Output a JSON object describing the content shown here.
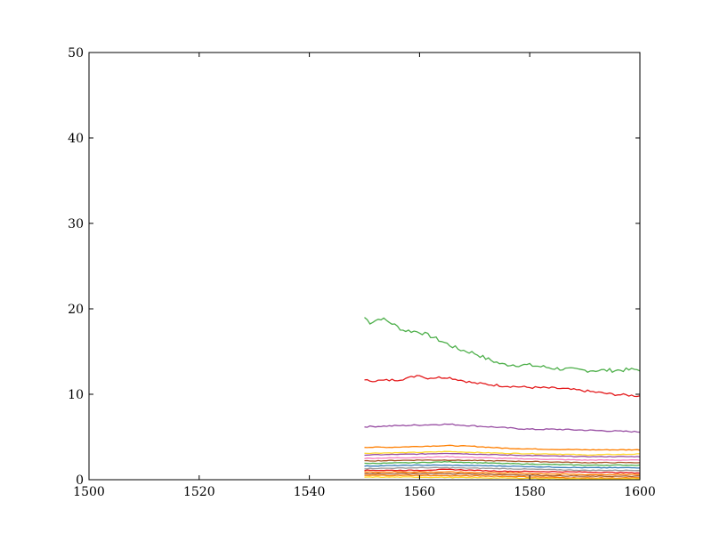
{
  "chart_data": {
    "type": "line",
    "title": "",
    "xlabel": "",
    "ylabel": "",
    "xlim": [
      1500,
      1600
    ],
    "ylim": [
      0,
      50
    ],
    "x_ticks": [
      "1500",
      "1520",
      "1540",
      "1560",
      "1580",
      "1600"
    ],
    "y_ticks": [
      "0",
      "10",
      "20",
      "30",
      "40",
      "50"
    ],
    "grid": false,
    "legend": "none",
    "x_range": [
      1550,
      1600
    ],
    "series": [
      {
        "color": "#4daf4a",
        "keyframes": [
          [
            1550,
            19.0
          ],
          [
            1551,
            18.4
          ],
          [
            1553,
            18.9
          ],
          [
            1555,
            18.3
          ],
          [
            1557,
            17.5
          ],
          [
            1560,
            17.3
          ],
          [
            1562,
            16.8
          ],
          [
            1565,
            15.9
          ],
          [
            1567,
            15.3
          ],
          [
            1570,
            14.8
          ],
          [
            1572,
            14.2
          ],
          [
            1575,
            13.5
          ],
          [
            1580,
            13.4
          ],
          [
            1585,
            13.0
          ],
          [
            1590,
            12.8
          ],
          [
            1595,
            12.8
          ],
          [
            1600,
            12.9
          ]
        ]
      },
      {
        "color": "#e41a1c",
        "keyframes": [
          [
            1550,
            11.6
          ],
          [
            1553,
            11.6
          ],
          [
            1556,
            11.7
          ],
          [
            1558,
            11.9
          ],
          [
            1560,
            12.3
          ],
          [
            1561,
            11.9
          ],
          [
            1565,
            12.0
          ],
          [
            1570,
            11.3
          ],
          [
            1575,
            11.0
          ],
          [
            1580,
            10.8
          ],
          [
            1585,
            10.7
          ],
          [
            1590,
            10.4
          ],
          [
            1595,
            10.0
          ],
          [
            1600,
            9.8
          ]
        ]
      },
      {
        "color": "#984ea3",
        "keyframes": [
          [
            1550,
            6.2
          ],
          [
            1555,
            6.3
          ],
          [
            1560,
            6.4
          ],
          [
            1565,
            6.5
          ],
          [
            1570,
            6.3
          ],
          [
            1575,
            6.1
          ],
          [
            1580,
            5.9
          ],
          [
            1585,
            5.9
          ],
          [
            1590,
            5.8
          ],
          [
            1595,
            5.7
          ],
          [
            1600,
            5.6
          ]
        ]
      },
      {
        "color": "#ff7f00",
        "keyframes": [
          [
            1550,
            3.8
          ],
          [
            1555,
            3.8
          ],
          [
            1560,
            3.9
          ],
          [
            1565,
            4.0
          ],
          [
            1570,
            3.9
          ],
          [
            1575,
            3.7
          ],
          [
            1580,
            3.6
          ],
          [
            1590,
            3.5
          ],
          [
            1600,
            3.5
          ]
        ]
      },
      {
        "color": "#ffd92f",
        "keyframes": [
          [
            1550,
            3.1
          ],
          [
            1560,
            3.2
          ],
          [
            1565,
            3.3
          ],
          [
            1575,
            3.1
          ],
          [
            1585,
            3.0
          ],
          [
            1590,
            2.9
          ],
          [
            1600,
            3.0
          ]
        ]
      },
      {
        "color": "#984ea3",
        "keyframes": [
          [
            1550,
            2.9
          ],
          [
            1560,
            3.0
          ],
          [
            1565,
            3.1
          ],
          [
            1575,
            2.9
          ],
          [
            1590,
            2.7
          ],
          [
            1600,
            2.7
          ]
        ]
      },
      {
        "color": "#f781bf",
        "keyframes": [
          [
            1550,
            2.5
          ],
          [
            1560,
            2.6
          ],
          [
            1565,
            2.7
          ],
          [
            1575,
            2.5
          ],
          [
            1590,
            2.3
          ],
          [
            1600,
            2.3
          ]
        ]
      },
      {
        "color": "#a65628",
        "keyframes": [
          [
            1550,
            2.2
          ],
          [
            1560,
            2.3
          ],
          [
            1565,
            2.3
          ],
          [
            1575,
            2.2
          ],
          [
            1590,
            2.0
          ],
          [
            1600,
            2.0
          ]
        ]
      },
      {
        "color": "#4daf4a",
        "keyframes": [
          [
            1550,
            1.9
          ],
          [
            1560,
            2.0
          ],
          [
            1565,
            2.1
          ],
          [
            1575,
            1.9
          ],
          [
            1590,
            1.7
          ],
          [
            1600,
            1.7
          ]
        ]
      },
      {
        "color": "#377eb8",
        "keyframes": [
          [
            1550,
            1.6
          ],
          [
            1560,
            1.7
          ],
          [
            1565,
            1.7
          ],
          [
            1575,
            1.6
          ],
          [
            1590,
            1.4
          ],
          [
            1600,
            1.4
          ]
        ]
      },
      {
        "color": "#999999",
        "keyframes": [
          [
            1550,
            1.3
          ],
          [
            1560,
            1.4
          ],
          [
            1565,
            1.4
          ],
          [
            1575,
            1.3
          ],
          [
            1590,
            1.1
          ],
          [
            1600,
            1.1
          ]
        ]
      },
      {
        "color": "#e41a1c",
        "keyframes": [
          [
            1550,
            1.1
          ],
          [
            1560,
            1.1
          ],
          [
            1565,
            1.2
          ],
          [
            1575,
            1.0
          ],
          [
            1590,
            0.9
          ],
          [
            1600,
            0.8
          ]
        ]
      },
      {
        "color": "#ff7f00",
        "keyframes": [
          [
            1550,
            0.9
          ],
          [
            1560,
            0.9
          ],
          [
            1565,
            0.9
          ],
          [
            1575,
            0.8
          ],
          [
            1590,
            0.6
          ],
          [
            1600,
            0.6
          ]
        ]
      },
      {
        "color": "#a65628",
        "keyframes": [
          [
            1550,
            0.7
          ],
          [
            1560,
            0.7
          ],
          [
            1565,
            0.7
          ],
          [
            1575,
            0.6
          ],
          [
            1590,
            0.4
          ],
          [
            1600,
            0.4
          ]
        ]
      },
      {
        "color": "#ff7f00",
        "keyframes": [
          [
            1550,
            0.5
          ],
          [
            1560,
            0.5
          ],
          [
            1575,
            0.4
          ],
          [
            1590,
            0.2
          ],
          [
            1600,
            0.2
          ]
        ]
      },
      {
        "color": "#ffd92f",
        "keyframes": [
          [
            1550,
            0.3
          ],
          [
            1560,
            0.3
          ],
          [
            1575,
            0.2
          ],
          [
            1590,
            0.1
          ],
          [
            1600,
            0.1
          ]
        ]
      }
    ]
  }
}
